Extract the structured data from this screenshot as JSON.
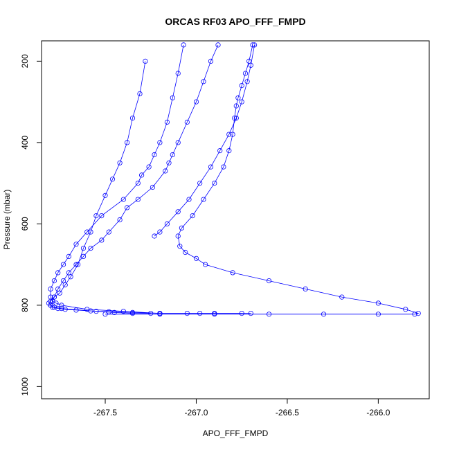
{
  "chart_data": {
    "type": "line",
    "title": "ORCAS RF03 APO_FFF_FMPD",
    "xlabel": "APO_FFF_FMPD",
    "ylabel": "Pressure (mbar)",
    "xlim": [
      -267.85,
      -265.72
    ],
    "ylim": [
      1030,
      150
    ],
    "y_reversed": true,
    "x_ticks": [
      -267.5,
      -267.0,
      -266.5,
      -266.0
    ],
    "x_tick_labels": [
      "-267.5",
      "-267.0",
      "-266.5",
      "-266.0"
    ],
    "y_ticks": [
      200,
      400,
      600,
      800,
      1000
    ],
    "y_tick_labels": [
      "200",
      "400",
      "600",
      "800",
      "1000"
    ],
    "grid": false,
    "legend": "none",
    "marker": "open-circle",
    "color": "#0000ff",
    "series": [
      {
        "x": [
          -267.28,
          -267.31,
          -267.35,
          -267.38,
          -267.42,
          -267.46,
          -267.5,
          -267.55,
          -267.58,
          -267.62,
          -267.65,
          -267.69,
          -267.72,
          -267.75,
          -267.78,
          -267.8,
          -267.81,
          -267.8,
          -267.78,
          -267.74,
          -267.55,
          -267.45,
          -267.35,
          -267.25
        ],
        "y": [
          200,
          280,
          340,
          400,
          450,
          490,
          530,
          580,
          620,
          660,
          700,
          730,
          750,
          770,
          780,
          790,
          795,
          800,
          805,
          808,
          815,
          818,
          820,
          820
        ]
      },
      {
        "x": [
          -267.07,
          -267.1,
          -267.13,
          -267.16,
          -267.2,
          -267.23,
          -267.26,
          -267.3,
          -267.32,
          -267.4,
          -267.52,
          -267.6,
          -267.66,
          -267.7,
          -267.73,
          -267.76,
          -267.78,
          -267.8,
          -267.8,
          -267.79,
          -267.77,
          -267.74,
          -267.6,
          -267.4,
          -267.2,
          -266.98,
          -266.75
        ],
        "y": [
          160,
          230,
          290,
          350,
          400,
          430,
          460,
          480,
          500,
          540,
          580,
          620,
          650,
          680,
          700,
          720,
          740,
          760,
          780,
          790,
          795,
          800,
          810,
          815,
          820,
          820,
          820
        ]
      },
      {
        "x": [
          -266.88,
          -266.92,
          -266.96,
          -267.0,
          -267.05,
          -267.1,
          -267.13,
          -267.15,
          -267.17,
          -267.24,
          -267.32,
          -267.38,
          -267.42,
          -267.48,
          -267.52,
          -267.58,
          -267.62,
          -267.66,
          -267.7,
          -267.73,
          -267.76,
          -267.78,
          -267.79,
          -267.8,
          -267.79,
          -267.76,
          -267.72,
          -267.66,
          -267.58,
          -267.48,
          -267.35,
          -267.2,
          -267.05,
          -266.9,
          -266.7
        ],
        "y": [
          160,
          200,
          250,
          300,
          350,
          400,
          430,
          450,
          470,
          510,
          540,
          560,
          590,
          620,
          640,
          660,
          680,
          700,
          720,
          740,
          760,
          780,
          790,
          800,
          805,
          808,
          810,
          812,
          814,
          816,
          818,
          820,
          820,
          820,
          820
        ]
      },
      {
        "x": [
          -266.68,
          -266.7,
          -266.72,
          -266.75,
          -266.78,
          -266.82,
          -266.87,
          -266.92,
          -266.98,
          -267.04,
          -267.1,
          -267.16,
          -267.2,
          -267.23
        ],
        "y": [
          160,
          210,
          250,
          300,
          340,
          380,
          420,
          460,
          500,
          540,
          570,
          600,
          620,
          630
        ]
      },
      {
        "x": [
          -266.69,
          -266.71,
          -266.73,
          -266.75,
          -266.77,
          -266.78,
          -266.79,
          -266.8,
          -266.82,
          -266.85,
          -266.9,
          -266.96,
          -267.02,
          -267.08,
          -267.1,
          -267.09,
          -267.06,
          -267.0,
          -266.95,
          -266.8,
          -266.6,
          -266.4,
          -266.2,
          -266.0,
          -265.85,
          -265.78,
          -265.8,
          -266.0,
          -266.3,
          -266.6,
          -266.9,
          -267.2,
          -267.5
        ],
        "y": [
          160,
          200,
          230,
          260,
          290,
          310,
          340,
          380,
          420,
          460,
          500,
          540,
          580,
          610,
          630,
          655,
          670,
          685,
          700,
          720,
          740,
          760,
          780,
          795,
          810,
          820,
          822,
          822,
          822,
          822,
          822,
          822,
          822
        ]
      }
    ]
  }
}
